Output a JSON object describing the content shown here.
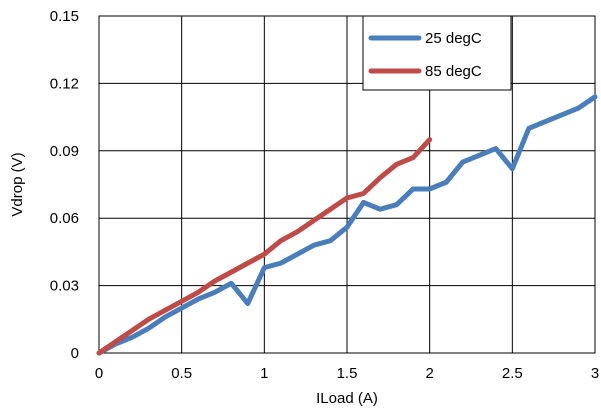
{
  "chart_data": {
    "type": "line",
    "title": "",
    "xlabel": "ILoad (A)",
    "ylabel": "Vdrop (V)",
    "xlim": [
      0,
      3
    ],
    "ylim": [
      0,
      0.15
    ],
    "xticks": [
      {
        "value": 0,
        "label": "0"
      },
      {
        "value": 0.5,
        "label": "0.5"
      },
      {
        "value": 1,
        "label": "1"
      },
      {
        "value": 1.5,
        "label": "1.5"
      },
      {
        "value": 2,
        "label": "2"
      },
      {
        "value": 2.5,
        "label": "2.5"
      },
      {
        "value": 3,
        "label": "3"
      }
    ],
    "yticks": [
      {
        "value": 0,
        "label": "0"
      },
      {
        "value": 0.03,
        "label": "0.03"
      },
      {
        "value": 0.06,
        "label": "0.06"
      },
      {
        "value": 0.09,
        "label": "0.09"
      },
      {
        "value": 0.12,
        "label": "0.12"
      },
      {
        "value": 0.15,
        "label": "0.15"
      }
    ],
    "grid": true,
    "legend_position": "top-right",
    "series": [
      {
        "name": "25 degC",
        "color": "#4a7ebb",
        "x": [
          0,
          0.1,
          0.2,
          0.3,
          0.4,
          0.5,
          0.6,
          0.7,
          0.8,
          0.9,
          1.0,
          1.1,
          1.2,
          1.3,
          1.4,
          1.5,
          1.6,
          1.7,
          1.8,
          1.9,
          2.0,
          2.1,
          2.2,
          2.3,
          2.4,
          2.5,
          2.6,
          2.7,
          2.8,
          2.9,
          3.0
        ],
        "y": [
          0,
          0.004,
          0.007,
          0.011,
          0.016,
          0.02,
          0.024,
          0.027,
          0.031,
          0.022,
          0.038,
          0.04,
          0.044,
          0.048,
          0.05,
          0.056,
          0.067,
          0.064,
          0.066,
          0.073,
          0.073,
          0.076,
          0.085,
          0.088,
          0.091,
          0.082,
          0.1,
          0.103,
          0.106,
          0.109,
          0.114
        ]
      },
      {
        "name": "85 degC",
        "color": "#be4b48",
        "x": [
          0,
          0.1,
          0.2,
          0.3,
          0.4,
          0.5,
          0.6,
          0.7,
          0.8,
          0.9,
          1.0,
          1.1,
          1.2,
          1.3,
          1.4,
          1.5,
          1.6,
          1.7,
          1.8,
          1.9,
          2.0
        ],
        "y": [
          0,
          0.005,
          0.01,
          0.015,
          0.019,
          0.023,
          0.027,
          0.032,
          0.036,
          0.04,
          0.044,
          0.05,
          0.054,
          0.059,
          0.064,
          0.069,
          0.071,
          0.078,
          0.084,
          0.087,
          0.095
        ]
      }
    ]
  }
}
